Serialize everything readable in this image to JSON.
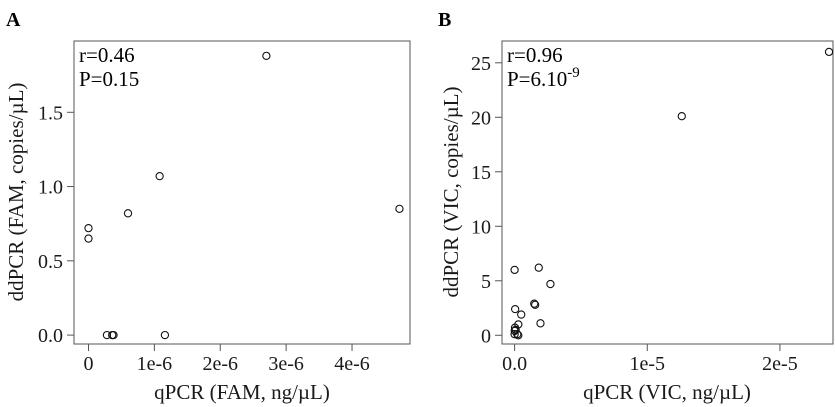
{
  "chart_data": [
    {
      "panel": "A",
      "type": "scatter",
      "xlabel": "qPCR (FAM, ng/µL)",
      "ylabel": "ddPCR (FAM, copies/µL)",
      "xlim": [
        -2.2e-07,
        4.88e-06
      ],
      "ylim": [
        -0.06,
        1.98
      ],
      "xticks": [
        0,
        1e-06,
        2e-06,
        3e-06,
        4e-06
      ],
      "xtick_labels": [
        "0",
        "1e-6",
        "2e-6",
        "3e-6",
        "4e-6"
      ],
      "yticks": [
        0.0,
        0.5,
        1.0,
        1.5
      ],
      "ytick_labels": [
        "0.0",
        "0.5",
        "1.0",
        "1.5"
      ],
      "annotation": {
        "r": "r=0.46",
        "p": "P=0.15",
        "p_exp": ""
      },
      "points": [
        {
          "x": 0.0,
          "y": 0.72
        },
        {
          "x": 0.0,
          "y": 0.65
        },
        {
          "x": 2.8e-07,
          "y": 0.0
        },
        {
          "x": 3.6e-07,
          "y": 0.0
        },
        {
          "x": 3.8e-07,
          "y": 0.0
        },
        {
          "x": 6e-07,
          "y": 0.82
        },
        {
          "x": 1.08e-06,
          "y": 1.07
        },
        {
          "x": 1.16e-06,
          "y": 0.0
        },
        {
          "x": 2.7e-06,
          "y": 1.88
        },
        {
          "x": 4.72e-06,
          "y": 0.85
        }
      ]
    },
    {
      "panel": "B",
      "type": "scatter",
      "xlabel": "qPCR (VIC, ng/µL)",
      "ylabel": "ddPCR (VIC, copies/µL)",
      "xlim": [
        -9.5e-07,
        2.4e-05
      ],
      "ylim": [
        -0.8,
        27.0
      ],
      "xticks": [
        0,
        1e-05,
        2e-05
      ],
      "xtick_labels": [
        "0.0",
        "1e-5",
        "2e-5"
      ],
      "yticks": [
        0,
        5,
        10,
        15,
        20,
        25
      ],
      "ytick_labels": [
        "0",
        "5",
        "10",
        "15",
        "20",
        "25"
      ],
      "annotation": {
        "r": "r=0.96",
        "p": "P=6.10",
        "p_exp": "-9"
      },
      "points": [
        {
          "x": 0.0,
          "y": 0.1
        },
        {
          "x": 1e-08,
          "y": 0.4
        },
        {
          "x": 3e-08,
          "y": 0.7
        },
        {
          "x": 8e-08,
          "y": 0.5
        },
        {
          "x": 2e-07,
          "y": 0.1
        },
        {
          "x": 2.8e-07,
          "y": 0.0
        },
        {
          "x": 0.0,
          "y": 6.0
        },
        {
          "x": 4e-08,
          "y": 2.4
        },
        {
          "x": 2.8e-07,
          "y": 1.0
        },
        {
          "x": 5e-07,
          "y": 1.9
        },
        {
          "x": 1.48e-06,
          "y": 2.9
        },
        {
          "x": 1.55e-06,
          "y": 2.8
        },
        {
          "x": 1.82e-06,
          "y": 6.2
        },
        {
          "x": 1.95e-06,
          "y": 1.1
        },
        {
          "x": 2.7e-06,
          "y": 4.7
        },
        {
          "x": 1.26e-05,
          "y": 20.1
        },
        {
          "x": 2.37e-05,
          "y": 26.0
        }
      ]
    }
  ]
}
